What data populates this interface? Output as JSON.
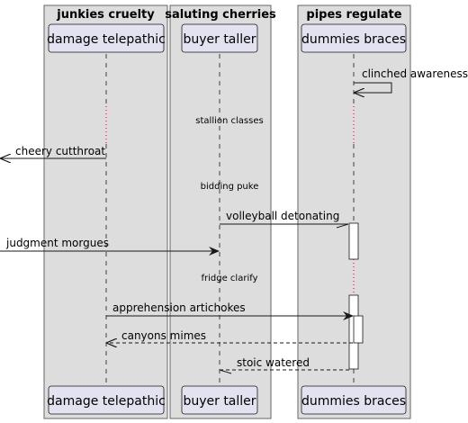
{
  "diagram": {
    "boxes": [
      {
        "title": "junkies cruelty"
      },
      {
        "title": "saluting cherries"
      },
      {
        "title": "pipes regulate"
      }
    ],
    "participants": [
      {
        "label": "damage telepathic"
      },
      {
        "label": "buyer taller"
      },
      {
        "label": "dummies braces"
      }
    ],
    "messages": [
      {
        "label": "clinched awareness",
        "from": "dummies braces",
        "to": "dummies braces",
        "style": "solid"
      },
      {
        "label": "cheery cutthroat",
        "from": "damage telepathic",
        "to": "left-edge",
        "style": "solid"
      },
      {
        "label": "volleyball detonating",
        "from": "buyer taller",
        "to": "dummies braces",
        "style": "solid"
      },
      {
        "label": "judgment morgues",
        "from": "left-edge",
        "to": "buyer taller",
        "style": "solid"
      },
      {
        "label": "apprehension artichokes",
        "from": "damage telepathic",
        "to": "dummies braces",
        "style": "solid"
      },
      {
        "label": "canyons mimes",
        "from": "dummies braces",
        "to": "damage telepathic",
        "style": "dashed"
      },
      {
        "label": "stoic watered",
        "from": "dummies braces",
        "to": "buyer taller",
        "style": "dashed"
      }
    ],
    "dividers": [
      {
        "label": "stallion classes"
      },
      {
        "label": "bidding puke"
      },
      {
        "label": "fridge clarify"
      }
    ],
    "colors": {
      "box_fill": "#dddddd",
      "box_border": "#666666",
      "participant_fill": "#e2e2f0",
      "participant_border": "#181818",
      "lifeline": "#181818",
      "delay_dots": "#b03060"
    }
  }
}
